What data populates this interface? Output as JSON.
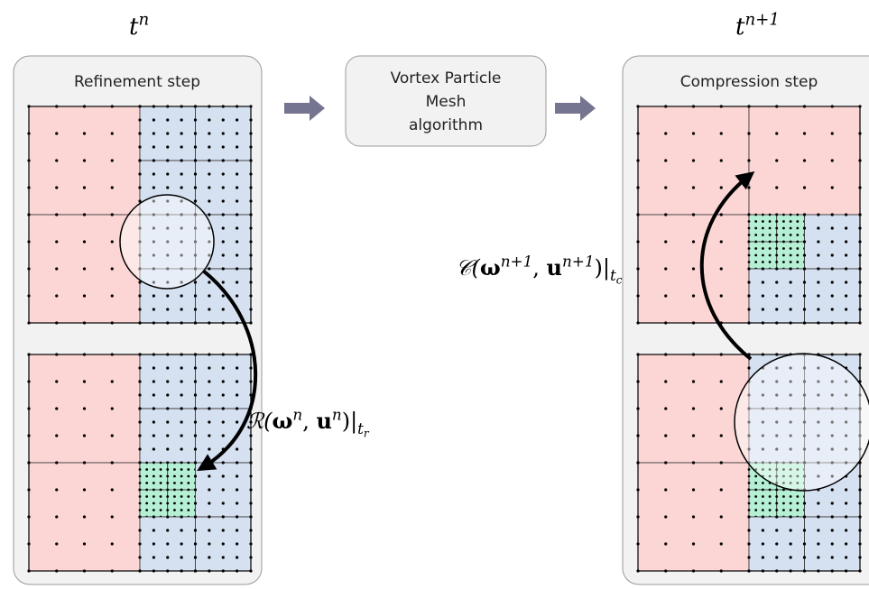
{
  "time_left": [
    {
      "text": "t"
    },
    {
      "sup": "n"
    }
  ],
  "time_right": [
    {
      "text": "t"
    },
    {
      "sup": "n+1"
    }
  ],
  "refinement_panel": {
    "title": "Refinement step"
  },
  "algorithm_box": {
    "lines": [
      "Vortex Particle",
      "Mesh",
      "algorithm"
    ]
  },
  "compression_panel": {
    "title": "Compression step"
  },
  "refinement_operator": [
    {
      "text": "ℛ("
    },
    {
      "bold": "ω"
    },
    {
      "sup": "n"
    },
    {
      "text": ", "
    },
    {
      "bold": "u"
    },
    {
      "sup": "n"
    },
    {
      "text": ")|"
    },
    {
      "sub": "t"
    },
    {
      "subsub": "r"
    }
  ],
  "compression_operator": [
    {
      "text": "𝒞("
    },
    {
      "bold": "ω"
    },
    {
      "sup": "n+1"
    },
    {
      "text": ", "
    },
    {
      "bold": "u"
    },
    {
      "sup": "n+1"
    },
    {
      "text": ")|"
    },
    {
      "sub": "t"
    },
    {
      "subsub": "c"
    }
  ]
}
